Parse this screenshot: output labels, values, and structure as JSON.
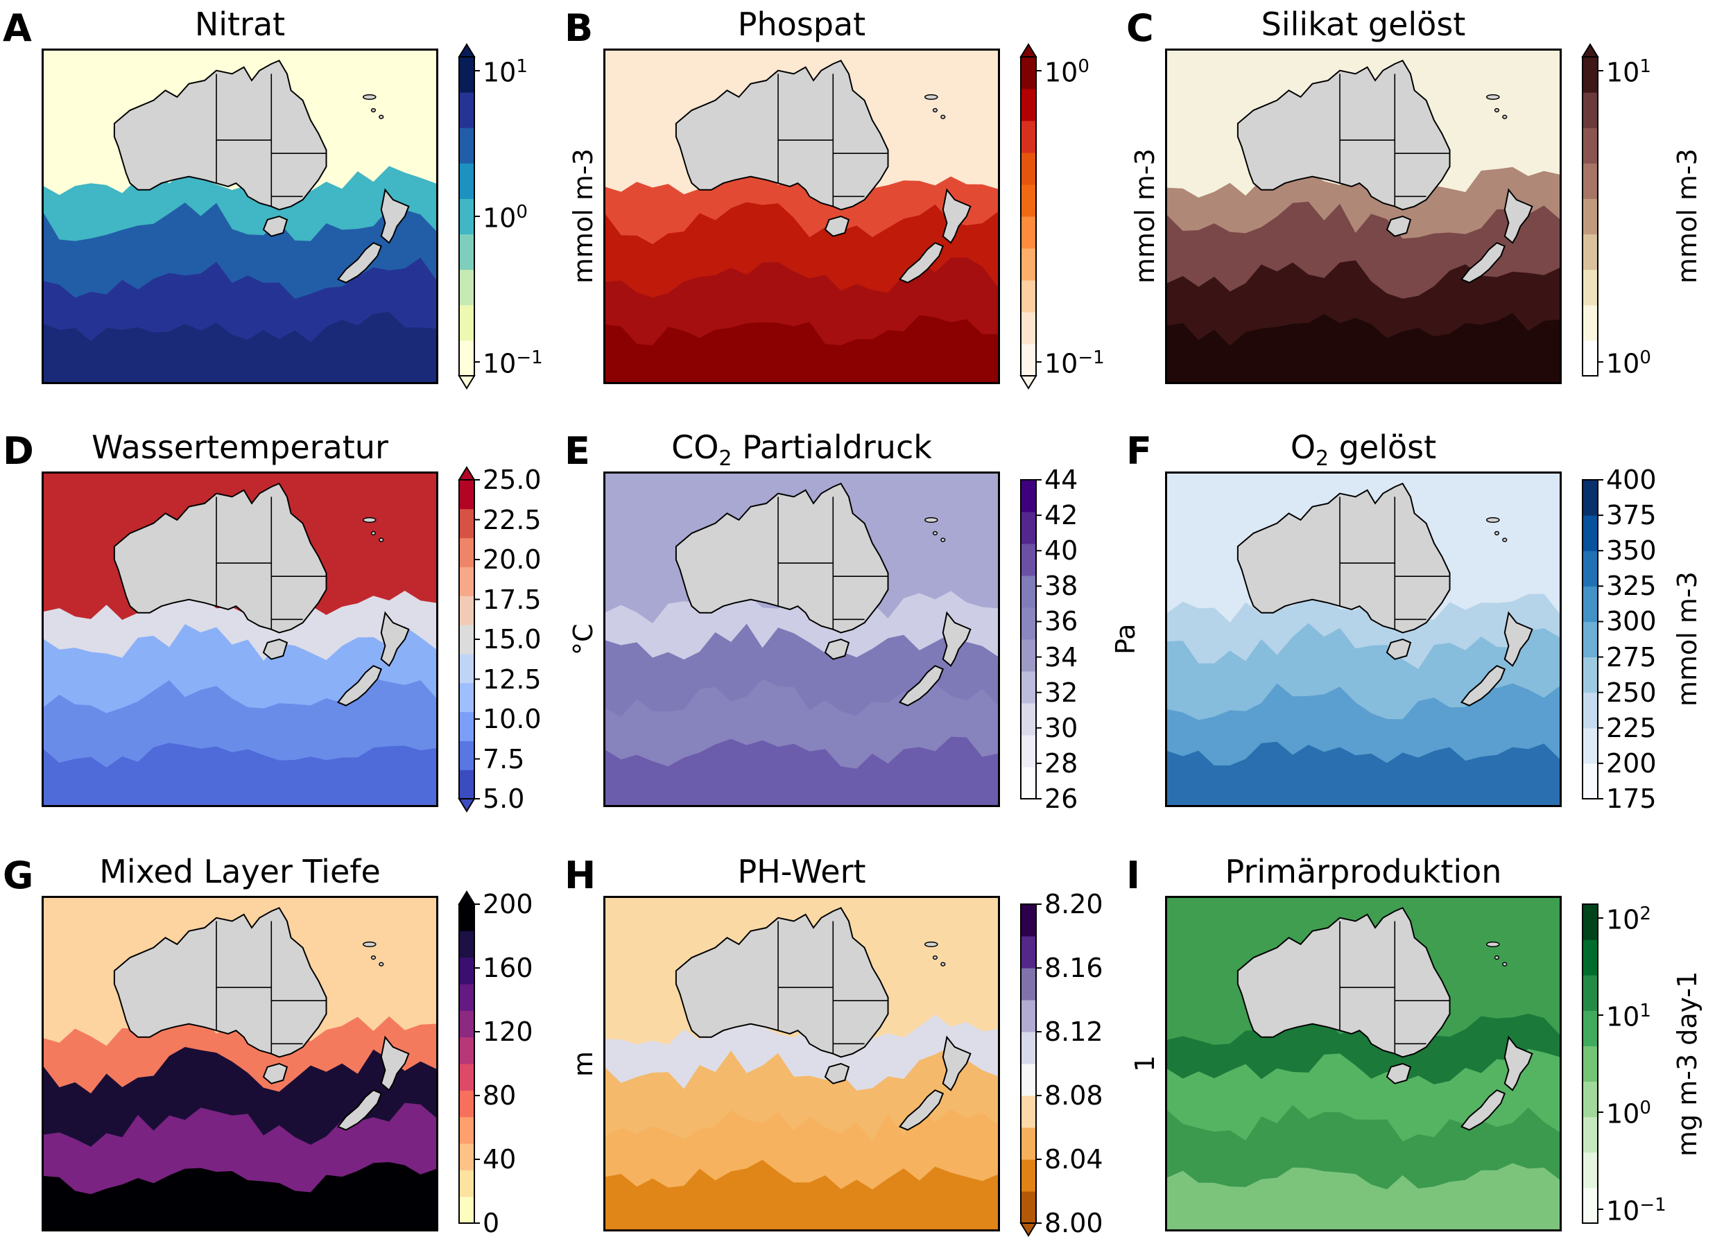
{
  "figure": {
    "panels": [
      {
        "letter": "A",
        "title": "Nitrat",
        "title_sub": "",
        "title_rest": "",
        "unit_left": "",
        "unit_right": "",
        "scale": "log",
        "extend": "both",
        "ticks": [
          {
            "label": "10",
            "sup": "1"
          },
          {
            "label": "10",
            "sup": "0"
          },
          {
            "label": "10",
            "sup": "−1"
          }
        ],
        "colors": [
          "#ffffd9",
          "#edf8b1",
          "#c7e9b4",
          "#7fcdbb",
          "#41b6c4",
          "#1d91c0",
          "#225ea8",
          "#253494",
          "#081d58"
        ],
        "map_colors": {
          "north": "#ffffd9",
          "front": "#41b6c4",
          "mid": "#225ea8",
          "south": "#253494",
          "deep": "#1a2a78"
        }
      },
      {
        "letter": "B",
        "title": "Phospat",
        "title_sub": "",
        "title_rest": "",
        "unit_left": "mmol m-3",
        "unit_right": "",
        "scale": "log",
        "extend": "both",
        "ticks": [
          {
            "label": "10",
            "sup": "0"
          },
          {
            "label": "10",
            "sup": "−1"
          }
        ],
        "colors": [
          "#fff5eb",
          "#fee6ce",
          "#fdd0a2",
          "#fdae6b",
          "#fd8d3c",
          "#f16913",
          "#e6550d",
          "#d7301f",
          "#b30000",
          "#7f0000"
        ],
        "map_colors": {
          "north": "#fde8d2",
          "front": "#e34a33",
          "mid": "#c01a0b",
          "south": "#a50f0f",
          "deep": "#8b0000"
        }
      },
      {
        "letter": "C",
        "title": "Silikat gelöst",
        "title_sub": "",
        "title_rest": "",
        "unit_left": "mmol m-3",
        "unit_right": "mmol m-3",
        "scale": "log",
        "extend": "max",
        "ticks": [
          {
            "label": "10",
            "sup": "1"
          },
          {
            "label": "10",
            "sup": "0"
          }
        ],
        "colors": [
          "#ffffff",
          "#faf6e0",
          "#eee3bb",
          "#d9c19b",
          "#c19a7d",
          "#a77565",
          "#8a5450",
          "#6b3a3a",
          "#3e1717"
        ],
        "map_colors": {
          "north": "#f5f1dc",
          "front": "#b08878",
          "mid": "#7a4848",
          "south": "#3a1414",
          "deep": "#200808"
        }
      },
      {
        "letter": "D",
        "title": "Wassertemperatur",
        "title_sub": "",
        "title_rest": "",
        "unit_left": "",
        "unit_right": "",
        "scale": "linear",
        "extend": "both",
        "ticks": [
          {
            "label": "25.0"
          },
          {
            "label": "22.5"
          },
          {
            "label": "20.0"
          },
          {
            "label": "17.5"
          },
          {
            "label": "15.0"
          },
          {
            "label": "12.5"
          },
          {
            "label": "10.0"
          },
          {
            "label": "7.5"
          },
          {
            "label": "5.0"
          }
        ],
        "colors": [
          "#3b4cc0",
          "#5977e3",
          "#7b9ff9",
          "#9ebeff",
          "#c0d4f5",
          "#dddcdc",
          "#f2cbb7",
          "#f7a889",
          "#ee8468",
          "#d65244",
          "#b40426"
        ],
        "map_colors": {
          "north": "#c0282d",
          "front": "#dcdde8",
          "mid": "#8ab0f8",
          "south": "#6a8ce9",
          "deep": "#4f6bd9"
        }
      },
      {
        "letter": "E",
        "title": "CO",
        "title_sub": "2",
        "title_rest": " Partialdruck",
        "unit_left": "°C",
        "unit_right": "Pa",
        "scale": "linear",
        "extend": "neither",
        "ticks": [
          {
            "label": "44"
          },
          {
            "label": "42"
          },
          {
            "label": "40"
          },
          {
            "label": "38"
          },
          {
            "label": "36"
          },
          {
            "label": "34"
          },
          {
            "label": "32"
          },
          {
            "label": "30"
          },
          {
            "label": "28"
          },
          {
            "label": "26"
          }
        ],
        "colors": [
          "#fcfbfd",
          "#efedf5",
          "#dadaeb",
          "#bcbddc",
          "#9e9ac8",
          "#8a86bf",
          "#807dba",
          "#6a51a3",
          "#54278f",
          "#3f007d"
        ],
        "map_colors": {
          "north": "#a8a8d2",
          "front": "#cdcde5",
          "mid": "#7e7ab8",
          "south": "#8783bd",
          "deep": "#6c5cac"
        }
      },
      {
        "letter": "F",
        "title": "O",
        "title_sub": "2",
        "title_rest": " gelöst",
        "unit_left": "",
        "unit_right": "mmol m-3",
        "scale": "linear",
        "extend": "neither",
        "ticks": [
          {
            "label": "400"
          },
          {
            "label": "375"
          },
          {
            "label": "350"
          },
          {
            "label": "325"
          },
          {
            "label": "300"
          },
          {
            "label": "275"
          },
          {
            "label": "250"
          },
          {
            "label": "225"
          },
          {
            "label": "200"
          },
          {
            "label": "175"
          }
        ],
        "colors": [
          "#f7fbff",
          "#deebf7",
          "#c6dbef",
          "#9ecae1",
          "#6baed6",
          "#4292c6",
          "#2171b5",
          "#08519c",
          "#08306b"
        ],
        "map_colors": {
          "north": "#dbe8f5",
          "front": "#b5d3e9",
          "mid": "#86bcdc",
          "south": "#5a9fcf",
          "deep": "#2a70b0"
        }
      },
      {
        "letter": "G",
        "title": "Mixed Layer Tiefe",
        "title_sub": "",
        "title_rest": "",
        "unit_left": "",
        "unit_right": "",
        "scale": "linear",
        "extend": "max",
        "ticks": [
          {
            "label": "200"
          },
          {
            "label": "160"
          },
          {
            "label": "120"
          },
          {
            "label": "80"
          },
          {
            "label": "40"
          },
          {
            "label": "0"
          }
        ],
        "colors": [
          "#fcfdbf",
          "#fde2a0",
          "#fec287",
          "#fe9f6d",
          "#f6705c",
          "#de4968",
          "#b73779",
          "#8c2981",
          "#641a80",
          "#3b0f70",
          "#1c1044",
          "#000004"
        ],
        "map_colors": {
          "north": "#fdd3a0",
          "front": "#f47a5e",
          "mid": "#1a0d35",
          "south": "#7a2382",
          "deep": "#000004"
        }
      },
      {
        "letter": "H",
        "title": "PH-Wert",
        "title_sub": "",
        "title_rest": "",
        "unit_left": "m",
        "unit_right": "",
        "scale": "linear",
        "extend": "min",
        "ticks": [
          {
            "label": "8.20"
          },
          {
            "label": "8.16"
          },
          {
            "label": "8.12"
          },
          {
            "label": "8.08"
          },
          {
            "label": "8.04"
          },
          {
            "label": "8.00"
          }
        ],
        "colors": [
          "#b35806",
          "#e08214",
          "#f6b05c",
          "#fdd8a8",
          "#f7f7f7",
          "#d8daeb",
          "#b2abd2",
          "#8073ac",
          "#542788",
          "#2d004b"
        ],
        "map_colors": {
          "north": "#fbd9a5",
          "front": "#dddde9",
          "mid": "#f4b96a",
          "south": "#f6b25e",
          "deep": "#e08618"
        }
      },
      {
        "letter": "I",
        "title": "Primärproduktion",
        "title_sub": "",
        "title_rest": "",
        "unit_left": "1",
        "unit_right": "mg m-3 day-1",
        "scale": "log",
        "extend": "neither",
        "ticks": [
          {
            "label": "10",
            "sup": "2"
          },
          {
            "label": "10",
            "sup": "1"
          },
          {
            "label": "10",
            "sup": "0"
          },
          {
            "label": "10",
            "sup": "−1"
          }
        ],
        "colors": [
          "#f7fcf5",
          "#e5f5e0",
          "#c7e9c0",
          "#a1d99b",
          "#74c476",
          "#41ab5d",
          "#238b45",
          "#006d2c",
          "#00441b"
        ],
        "map_colors": {
          "north": "#3f9e50",
          "front": "#1b7a3a",
          "mid": "#55b462",
          "south": "#3c9a4f",
          "deep": "#7cc47c"
        }
      }
    ]
  }
}
